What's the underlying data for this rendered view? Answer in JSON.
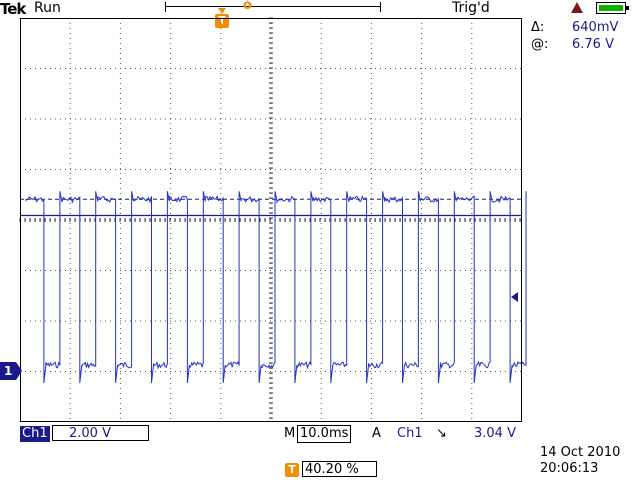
{
  "topbar": {
    "brand": "Tek",
    "mode": "Run",
    "trigger_status": "Trig'd",
    "record_marker": "ỏ",
    "trigger_marker": "T"
  },
  "measurement": {
    "delta_symbol": "Δ:",
    "delta_value": "640mV",
    "at_symbol": "@:",
    "at_value": "6.76 V"
  },
  "status_icons": {
    "warning": "warning-triangle-icon",
    "battery": "battery-icon",
    "battery_color": "#0bb000"
  },
  "channel": {
    "marker": "1",
    "name": "Ch1",
    "volts_per_div": "2.00 V"
  },
  "timebase": {
    "label": "M",
    "time_per_div": "10.0ms"
  },
  "trigger": {
    "mode": "A",
    "source": "Ch1",
    "slope_symbol": "↘",
    "level": "3.04 V"
  },
  "datetime": {
    "date": "14 Oct  2010",
    "time": "20:06:13"
  },
  "horizontal_position": {
    "marker": "T",
    "value": "40.20 %"
  },
  "waveform": {
    "color": "#2233c8",
    "high_level_v": 6.76,
    "low_level_v": 0.2,
    "pulse_count": 14,
    "cursor_dashed_v": 6.76,
    "cursor_solid_v": 6.12
  }
}
